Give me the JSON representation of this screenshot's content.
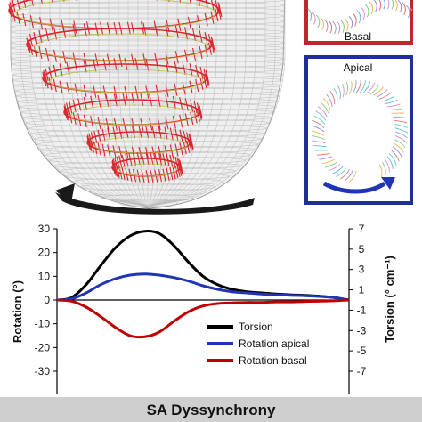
{
  "panels": {
    "basal_label": "Basal",
    "apical_label": "Apical",
    "basal_border_color": "#c0272d",
    "apical_border_color": "#1f2f9a"
  },
  "footer": {
    "title": "SA Dyssynchrony",
    "background": "#cfcfcf"
  },
  "chart_data": {
    "type": "line",
    "title": "",
    "xlabel": "",
    "ylabel": "Rotation (°)",
    "y2label": "Torsion (° cm⁻¹)",
    "ylim": [
      -30,
      30
    ],
    "y2lim": [
      -7,
      7
    ],
    "yticks": [
      "30",
      "20",
      "10",
      "0",
      "-10",
      "-20",
      "-30"
    ],
    "y2ticks": [
      "7",
      "5",
      "3",
      "1",
      "-1",
      "-3",
      "-5",
      "-7"
    ],
    "x": [
      0,
      5,
      10,
      15,
      20,
      25,
      30,
      35,
      40,
      45,
      50,
      55,
      60,
      65,
      70,
      75,
      80,
      85,
      90,
      95,
      100
    ],
    "series": [
      {
        "name": "Torsion",
        "color": "#000000",
        "values": [
          0,
          1,
          6.5,
          14.5,
          22,
          27,
          29,
          28,
          23,
          16,
          10,
          6.5,
          4.5,
          3.5,
          3,
          2.5,
          2.2,
          2,
          1.6,
          1,
          0
        ]
      },
      {
        "name": "Rotation apical",
        "color": "#1f35b5",
        "values": [
          0,
          0.5,
          3,
          6.5,
          9,
          10.5,
          11,
          10.5,
          9.5,
          8,
          6,
          4.5,
          3.5,
          3,
          2.5,
          2.2,
          2,
          1.8,
          1.5,
          1,
          0
        ]
      },
      {
        "name": "Rotation basal",
        "color": "#c00000",
        "values": [
          0,
          -0.5,
          -3,
          -7,
          -11.5,
          -15,
          -15.5,
          -13.5,
          -9,
          -5,
          -2.5,
          -1.5,
          -1.2,
          -1,
          -1,
          -0.8,
          -0.8,
          -0.6,
          -0.5,
          -0.3,
          0
        ]
      }
    ],
    "legend_position": "lower-right",
    "grid": false
  }
}
